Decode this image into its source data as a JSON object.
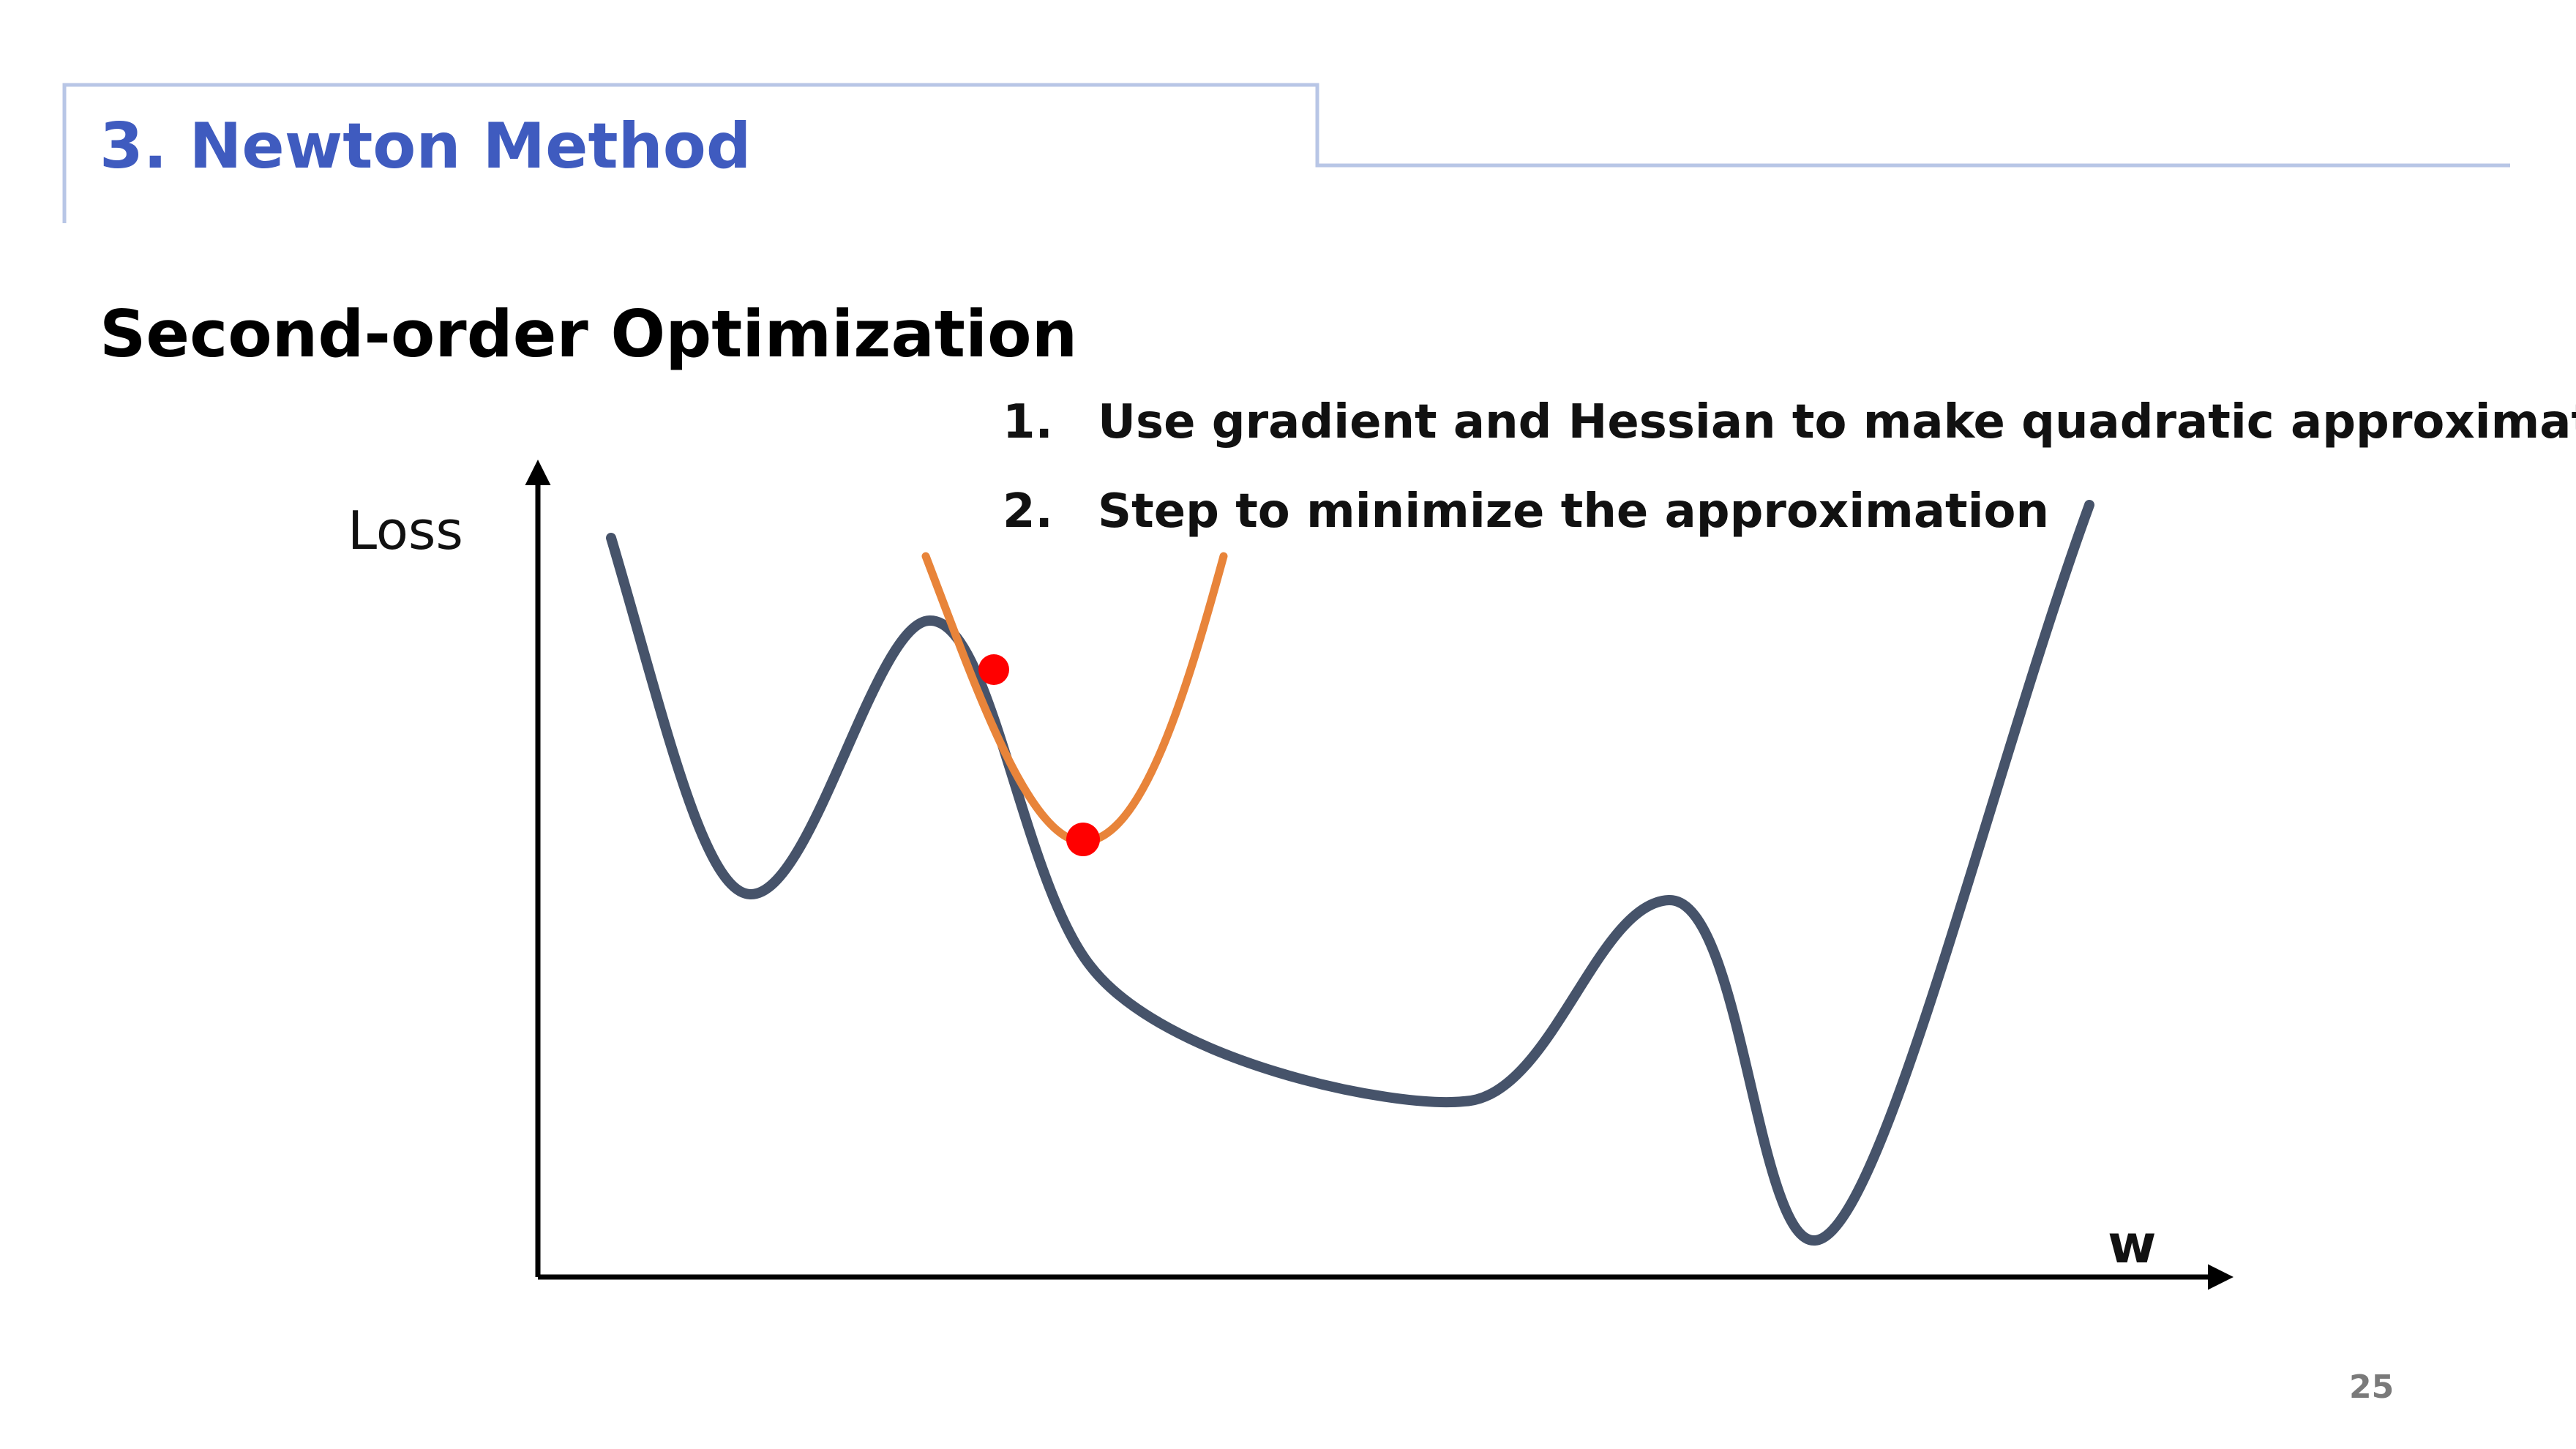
{
  "slide": {
    "title": "3. Newton Method",
    "heading": "Second-order Optimization",
    "page_number": "25"
  },
  "steps": [
    {
      "number": "1.",
      "text": "Use gradient and Hessian to make quadratic approximation"
    },
    {
      "number": "2.",
      "text": "Step to minimize the approximation"
    }
  ],
  "diagram": {
    "y_axis_label": "Loss",
    "x_axis_label": "w",
    "colors": {
      "loss_curve": "#46536a",
      "quadratic_approximation": "#e8843a",
      "points": "#ff0000",
      "axes": "#000000",
      "header_rule": "#b8c6e6"
    }
  }
}
